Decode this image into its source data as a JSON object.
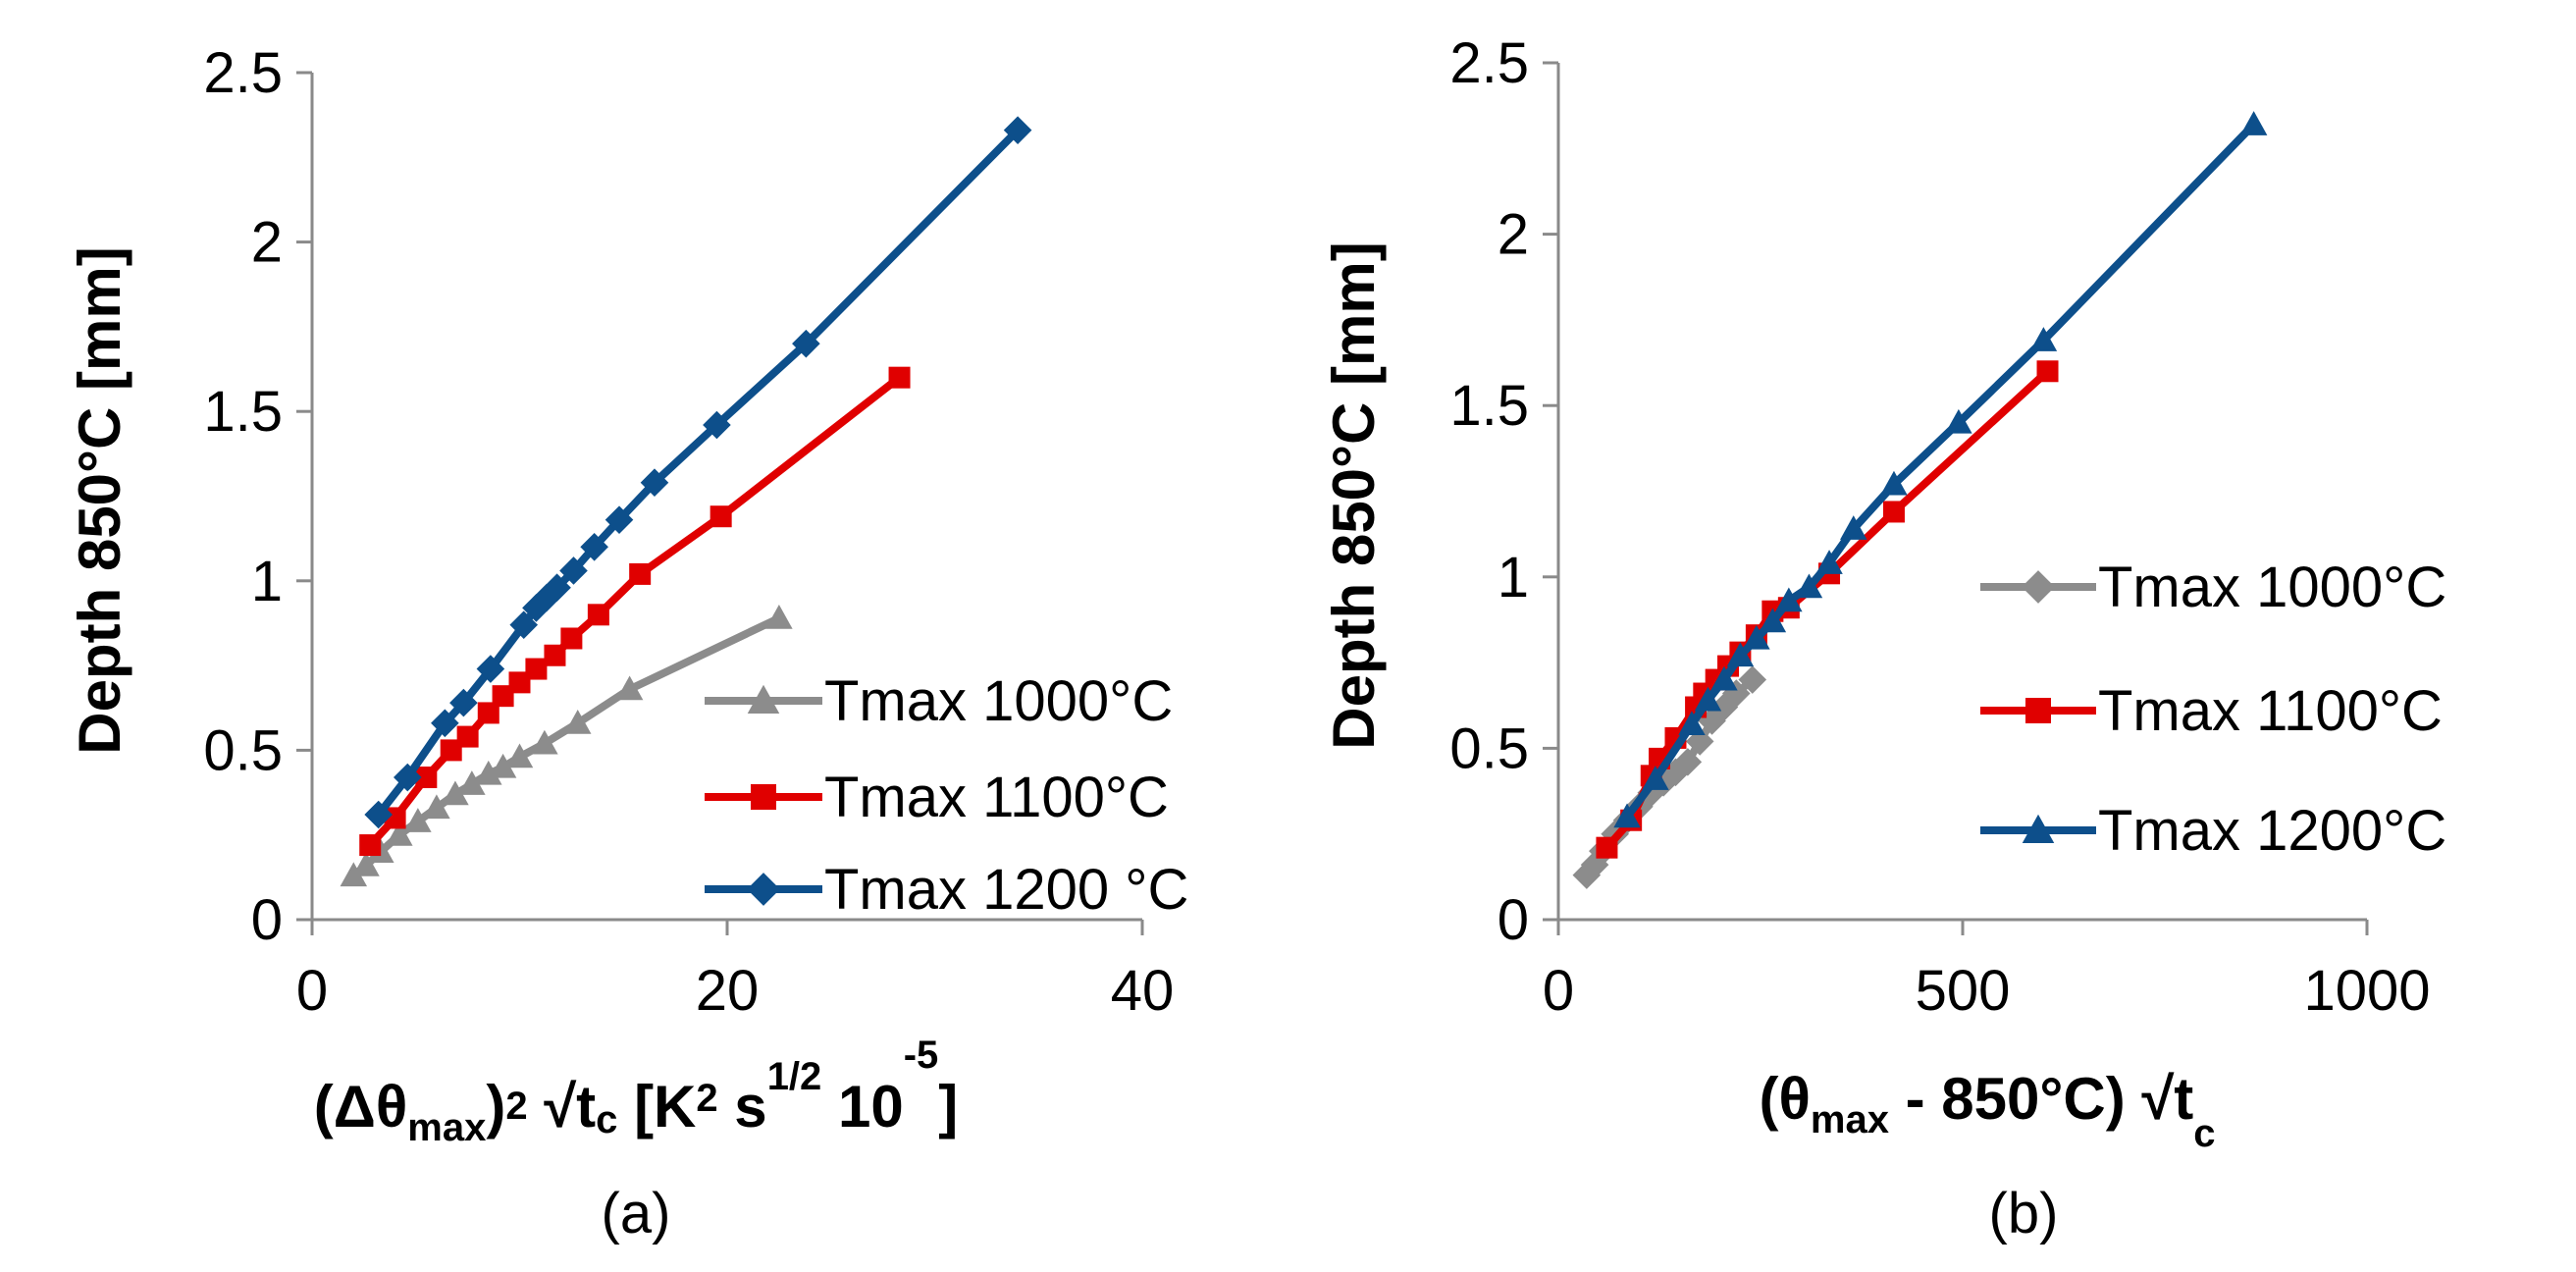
{
  "chart_data": [
    {
      "type": "line",
      "panel_label": "(a)",
      "xlabel_parts": [
        "(Δθ",
        "max",
        ")",
        "2",
        " √t",
        "c",
        " [K",
        "2",
        " s",
        "1/2",
        " 10",
        "-5",
        "]"
      ],
      "ylabel": "Depth 850°C [mm]",
      "xlim": [
        0,
        40
      ],
      "ylim": [
        0,
        2.5
      ],
      "x_ticks": [
        "0",
        "20",
        "40"
      ],
      "y_ticks": [
        "0",
        "0.5",
        "1",
        "1.5",
        "2",
        "2.5"
      ],
      "x_tick_values": [
        0,
        20,
        40
      ],
      "y_tick_values": [
        0,
        0.5,
        1,
        1.5,
        2,
        2.5
      ],
      "legend": [
        "Tmax 1000°C",
        "Tmax 1100°C",
        "Tmax 1200 °C"
      ],
      "series": [
        {
          "name": "Tmax 1000°C",
          "color": "#8c8c8c",
          "marker": "triangle",
          "x": [
            2,
            2.6,
            3.3,
            4.2,
            5.1,
            6,
            6.9,
            7.7,
            8.5,
            9.2,
            10,
            11.2,
            12.8,
            15.3,
            22.5
          ],
          "y": [
            0.13,
            0.16,
            0.2,
            0.25,
            0.29,
            0.33,
            0.37,
            0.4,
            0.43,
            0.45,
            0.48,
            0.52,
            0.58,
            0.68,
            0.89
          ]
        },
        {
          "name": "Tmax 1100°C",
          "color": "#e00000",
          "marker": "square",
          "x": [
            2.8,
            4,
            5.5,
            6.7,
            7.5,
            8.5,
            9.2,
            10,
            10.8,
            11.7,
            12.5,
            13.8,
            15.8,
            19.7,
            28.3
          ],
          "y": [
            0.22,
            0.3,
            0.42,
            0.5,
            0.54,
            0.61,
            0.66,
            0.7,
            0.74,
            0.78,
            0.83,
            0.9,
            1.02,
            1.19,
            1.6
          ]
        },
        {
          "name": "Tmax 1200 °C",
          "color": "#0d4f8b",
          "marker": "diamond",
          "x": [
            3.2,
            4.6,
            6.4,
            7.3,
            8.6,
            10.2,
            10.8,
            11.3,
            11.8,
            12.6,
            13.6,
            14.8,
            16.5,
            19.5,
            23.8,
            34
          ],
          "y": [
            0.31,
            0.42,
            0.58,
            0.64,
            0.74,
            0.87,
            0.92,
            0.95,
            0.98,
            1.03,
            1.1,
            1.18,
            1.29,
            1.46,
            1.7,
            2.33
          ]
        }
      ]
    },
    {
      "type": "line",
      "panel_label": "(b)",
      "xlabel_parts": [
        "(θ",
        "max",
        " - 850°C) √t",
        "c"
      ],
      "ylabel": "Depth 850°C [mm]",
      "xlim": [
        0,
        1000
      ],
      "ylim": [
        0,
        2.5
      ],
      "x_ticks": [
        "0",
        "500",
        "1000"
      ],
      "y_ticks": [
        "0",
        "0.5",
        "1",
        "1.5",
        "2",
        "2.5"
      ],
      "x_tick_values": [
        0,
        500,
        1000
      ],
      "y_tick_values": [
        0,
        0.5,
        1,
        1.5,
        2,
        2.5
      ],
      "legend": [
        "Tmax 1000°C",
        "Tmax 1100°C",
        "Tmax 1200°C"
      ],
      "series": [
        {
          "name": "Tmax 1000°C",
          "color": "#8c8c8c",
          "marker": "diamond",
          "x": [
            35,
            45,
            55,
            70,
            85,
            100,
            115,
            130,
            145,
            160,
            175,
            190,
            205,
            220,
            240
          ],
          "y": [
            0.13,
            0.16,
            0.2,
            0.25,
            0.29,
            0.33,
            0.37,
            0.4,
            0.43,
            0.46,
            0.52,
            0.58,
            0.62,
            0.66,
            0.7
          ]
        },
        {
          "name": "Tmax 1100°C",
          "color": "#e00000",
          "marker": "square",
          "x": [
            60,
            90,
            115,
            125,
            145,
            170,
            180,
            195,
            210,
            225,
            245,
            265,
            285,
            335,
            415,
            605
          ],
          "y": [
            0.21,
            0.29,
            0.42,
            0.47,
            0.53,
            0.62,
            0.66,
            0.7,
            0.74,
            0.78,
            0.83,
            0.9,
            0.91,
            1.01,
            1.19,
            1.6
          ]
        },
        {
          "name": "Tmax 1200°C",
          "color": "#0d4f8b",
          "marker": "triangle",
          "x": [
            85,
            120,
            165,
            185,
            205,
            225,
            245,
            265,
            285,
            310,
            335,
            365,
            415,
            495,
            600,
            860
          ],
          "y": [
            0.3,
            0.41,
            0.57,
            0.64,
            0.7,
            0.77,
            0.82,
            0.87,
            0.93,
            0.97,
            1.04,
            1.14,
            1.27,
            1.45,
            1.69,
            2.32
          ]
        }
      ]
    }
  ]
}
